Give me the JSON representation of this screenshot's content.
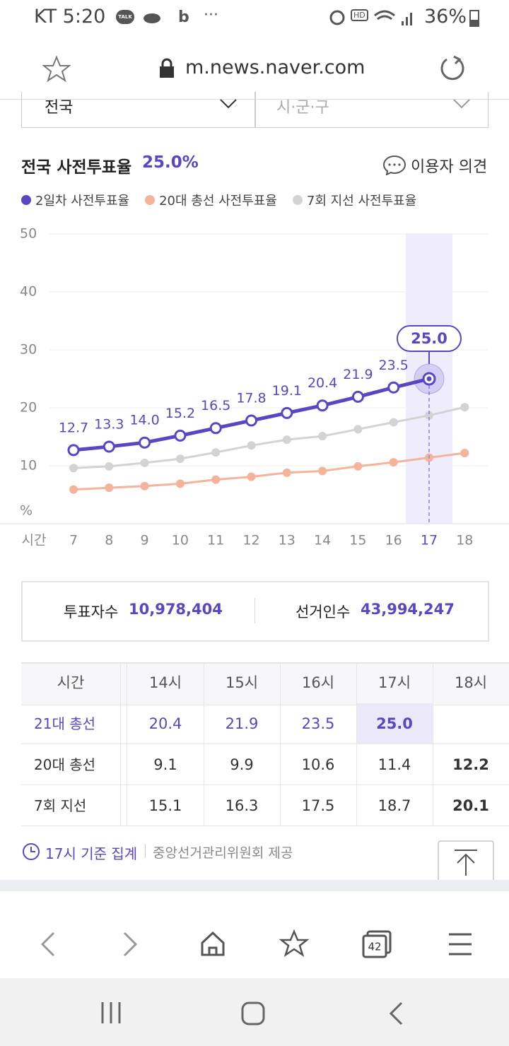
{
  "status": {
    "time": "KT 5:20",
    "talk": "TALK",
    "hd": "HD",
    "battery": "36%"
  },
  "browser": {
    "url": "m.news.naver.com",
    "tab_count": "42"
  },
  "filters": {
    "region": "전국",
    "district": "시·군·구"
  },
  "header": {
    "label": "전국 사전투표율",
    "value": "25.0%",
    "opinion": "이용자 의견"
  },
  "chart_data": {
    "type": "line",
    "x_label": "시간",
    "y_label": "%",
    "categories": [
      "7",
      "8",
      "9",
      "10",
      "11",
      "12",
      "13",
      "14",
      "15",
      "16",
      "17",
      "18"
    ],
    "highlight": "17",
    "series": [
      {
        "name": "2일차 사전투표율",
        "color": "#5b45c4",
        "values": [
          12.7,
          13.3,
          14.0,
          15.2,
          16.5,
          17.8,
          19.1,
          20.4,
          21.9,
          23.5,
          25.0,
          null
        ],
        "value_labels": [
          "12.7",
          "13.3",
          "14.0",
          "15.2",
          "16.5",
          "17.8",
          "19.1",
          "20.4",
          "21.9",
          "23.5",
          "25.0",
          null
        ]
      },
      {
        "name": "20대 총선 사전투표율",
        "color": "#f6b39b",
        "values": [
          5.9,
          6.2,
          6.5,
          6.9,
          7.6,
          8.1,
          8.8,
          9.1,
          9.9,
          10.6,
          11.4,
          12.2
        ]
      },
      {
        "name": "7회 지선 사전투표율",
        "color": "#d3d3d3",
        "values": [
          9.6,
          9.9,
          10.5,
          11.2,
          12.3,
          13.5,
          14.5,
          15.1,
          16.3,
          17.5,
          18.7,
          20.1
        ]
      }
    ],
    "ylim": [
      0,
      50
    ],
    "yticks": [
      10,
      20,
      30,
      40,
      50
    ],
    "grid": true
  },
  "stats": {
    "voters_label": "투표자수",
    "voters": "10,978,404",
    "electors_label": "선거인수",
    "electors": "43,994,247"
  },
  "table": {
    "header": [
      "시간",
      "14시",
      "15시",
      "16시",
      "17시",
      "18시"
    ],
    "rows": [
      [
        "21대 총선",
        "20.4",
        "21.9",
        "23.5",
        "25.0",
        null
      ],
      [
        "20대 총선",
        "9.1",
        "9.9",
        "10.6",
        "11.4",
        "12.2"
      ],
      [
        "7회 지선",
        "15.1",
        "16.3",
        "17.5",
        "18.7",
        "20.1"
      ]
    ]
  },
  "footer": {
    "basis": "17시 기준 집계",
    "source": "중앙선거관리위원회 제공"
  }
}
